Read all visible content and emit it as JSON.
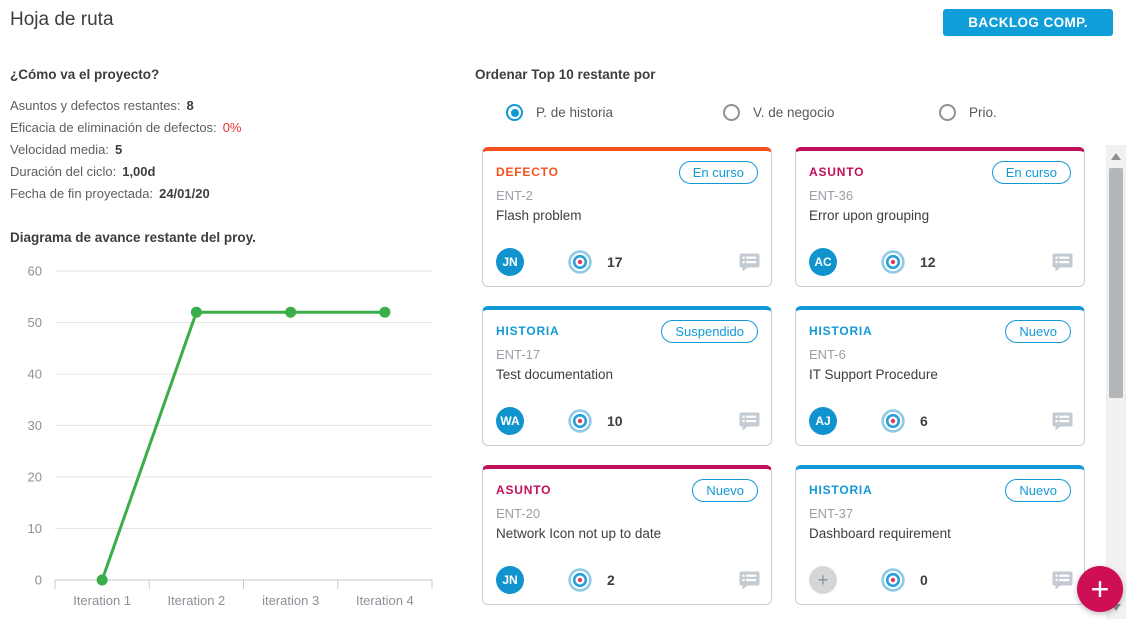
{
  "page": {
    "title": "Hoja de ruta"
  },
  "header": {
    "backlog_button": "BACKLOG COMP."
  },
  "project_health": {
    "heading": "¿Cómo va el proyecto?",
    "stats": [
      {
        "label": "Asuntos y defectos restantes:",
        "value": "8"
      },
      {
        "label": "Eficacia de eliminación de defectos:",
        "value": "0%",
        "value_color": "#e5352b"
      },
      {
        "label": "Velocidad media:",
        "value": "5"
      },
      {
        "label": "Duración del ciclo:",
        "value": "1,00d"
      },
      {
        "label": "Fecha de fin proyectada:",
        "value": "24/01/20"
      }
    ]
  },
  "chart_data": {
    "type": "line",
    "title": "Diagrama de avance restante del proy.",
    "categories": [
      "Iteration 1",
      "Iteration 2",
      "iteration 3",
      "Iteration 4"
    ],
    "values": [
      0,
      52,
      52,
      52
    ],
    "xlabel": "",
    "ylabel": "",
    "ylim": [
      0,
      60
    ],
    "yticks": [
      0,
      10,
      20,
      30,
      40,
      50,
      60
    ],
    "grid": true,
    "legend": "none",
    "line_color": "#3bae4a"
  },
  "sort_section": {
    "heading": "Ordenar Top 10 restante por",
    "options": [
      {
        "label": "P. de historia",
        "selected": true
      },
      {
        "label": "V. de negocio",
        "selected": false
      },
      {
        "label": "Prio.",
        "selected": false
      }
    ]
  },
  "cards": [
    {
      "type": "DEFECTO",
      "type_color": "#f4511e",
      "status": "En curso",
      "id": "ENT-2",
      "title": "Flash problem",
      "avatar": "JN",
      "points": "17",
      "unassigned": false
    },
    {
      "type": "ASUNTO",
      "type_color": "#c00f5b",
      "status": "En curso",
      "id": "ENT-36",
      "title": "Error upon grouping",
      "avatar": "AC",
      "points": "12",
      "unassigned": false
    },
    {
      "type": "HISTORIA",
      "type_color": "#1199d6",
      "status": "Suspendido",
      "id": "ENT-17",
      "title": "Test documentation",
      "avatar": "WA",
      "points": "10",
      "unassigned": false
    },
    {
      "type": "HISTORIA",
      "type_color": "#1199d6",
      "status": "Nuevo",
      "id": "ENT-6",
      "title": "IT Support Procedure",
      "avatar": "AJ",
      "points": "6",
      "unassigned": false
    },
    {
      "type": "ASUNTO",
      "type_color": "#c00f5b",
      "status": "Nuevo",
      "id": "ENT-20",
      "title": "Network Icon not up to date",
      "avatar": "JN",
      "points": "2",
      "unassigned": false
    },
    {
      "type": "HISTORIA",
      "type_color": "#1199d6",
      "status": "Nuevo",
      "id": "ENT-37",
      "title": "Dashboard requirement",
      "avatar": "+",
      "points": "0",
      "unassigned": true
    }
  ],
  "fab": {
    "label": "+",
    "color": "#ce0f56"
  },
  "icons": {
    "bullseye": "estimate-target",
    "comment": "comments-indicator"
  },
  "colors": {
    "brand_blue": "#0f9ed8",
    "avatar_blue": "#1193cd",
    "defect_orange": "#f4511e",
    "incident_crimson": "#c00f5b",
    "story_blue": "#1199d6",
    "chart_green": "#3bae4a",
    "alert_red": "#e5352b"
  }
}
